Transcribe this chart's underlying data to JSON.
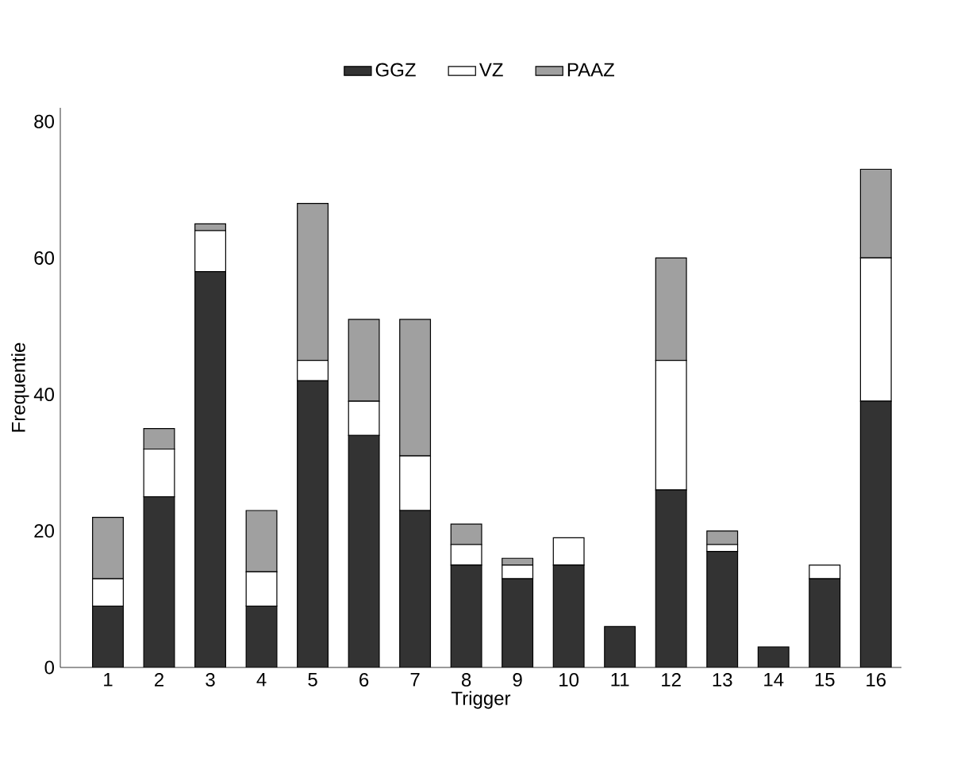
{
  "chart_data": {
    "type": "bar",
    "stacked": true,
    "xlabel": "Trigger",
    "ylabel": "Frequentie",
    "categories": [
      "1",
      "2",
      "3",
      "4",
      "5",
      "6",
      "7",
      "8",
      "9",
      "10",
      "11",
      "12",
      "13",
      "14",
      "15",
      "16"
    ],
    "series": [
      {
        "name": "GGZ",
        "color": "#333333",
        "values": [
          9,
          25,
          58,
          9,
          42,
          34,
          23,
          15,
          13,
          15,
          6,
          26,
          17,
          3,
          13,
          39
        ]
      },
      {
        "name": "VZ",
        "color": "#ffffff",
        "values": [
          4,
          7,
          6,
          5,
          3,
          5,
          8,
          3,
          2,
          4,
          0,
          19,
          1,
          0,
          2,
          21
        ]
      },
      {
        "name": "PAAZ",
        "color": "#a0a0a0",
        "values": [
          9,
          3,
          1,
          9,
          23,
          12,
          20,
          3,
          1,
          0,
          0,
          15,
          2,
          0,
          0,
          13
        ]
      }
    ],
    "ylim": [
      0,
      82
    ],
    "yticks": [
      0,
      20,
      40,
      60,
      80
    ],
    "grid": false,
    "legend": "top"
  }
}
